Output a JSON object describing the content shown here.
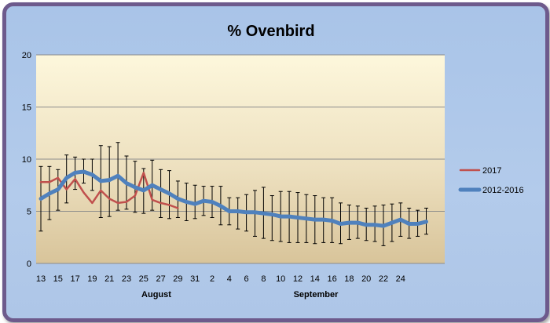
{
  "chart_data": {
    "type": "line",
    "title": "% Ovenbird",
    "xlabel": "",
    "ylabel": "",
    "ylim": [
      0,
      20
    ],
    "yticks": [
      "0",
      "5",
      "10",
      "15",
      "20"
    ],
    "grid": true,
    "legend_position": "right",
    "x_tick_labels": [
      "13",
      "15",
      "17",
      "19",
      "21",
      "23",
      "25",
      "27",
      "29",
      "31",
      "2",
      "4",
      "6",
      "8",
      "10",
      "12",
      "14",
      "16",
      "18",
      "20",
      "22",
      "24"
    ],
    "month_labels": [
      "August",
      "September"
    ],
    "series": [
      {
        "name": "2017",
        "color": "#c0504d",
        "values": [
          7.8,
          7.8,
          8.2,
          7.1,
          8.1,
          6.8,
          5.8,
          7.0,
          6.2,
          5.8,
          5.9,
          6.5,
          8.7,
          6.1,
          5.8,
          5.6,
          5.3
        ]
      },
      {
        "name": "2012-2016",
        "color": "#4f81bd",
        "values": [
          6.2,
          6.7,
          7.1,
          8.2,
          8.7,
          8.8,
          8.5,
          7.9,
          8.0,
          8.4,
          7.7,
          7.3,
          7.0,
          7.5,
          7.1,
          6.7,
          6.2,
          5.9,
          5.7,
          6.0,
          5.9,
          5.5,
          5.0,
          5.0,
          4.9,
          4.9,
          4.8,
          4.7,
          4.5,
          4.5,
          4.4,
          4.3,
          4.2,
          4.2,
          4.1,
          3.8,
          3.9,
          3.9,
          3.7,
          3.7,
          3.6,
          3.9,
          4.2,
          3.8,
          3.8,
          4.0
        ],
        "error_low": [
          3.1,
          4.2,
          5.1,
          5.8,
          7.1,
          7.7,
          7.0,
          4.4,
          4.5,
          5.1,
          5.2,
          4.9,
          4.8,
          5.1,
          4.4,
          4.3,
          4.4,
          4.1,
          4.3,
          4.6,
          4.4,
          3.7,
          3.7,
          3.3,
          3.1,
          2.6,
          2.4,
          2.2,
          2.1,
          2.0,
          2.0,
          2.0,
          1.9,
          2.0,
          2.0,
          1.9,
          2.3,
          2.4,
          2.2,
          2.1,
          1.7,
          2.1,
          2.6,
          2.4,
          2.6,
          2.8
        ],
        "error_high": [
          9.3,
          9.3,
          9.0,
          10.4,
          10.2,
          10.0,
          10.0,
          11.3,
          11.2,
          11.6,
          10.3,
          9.8,
          9.1,
          9.9,
          9.0,
          8.9,
          7.9,
          7.7,
          7.5,
          7.4,
          7.4,
          7.4,
          6.3,
          6.3,
          6.6,
          7.0,
          7.3,
          6.5,
          6.9,
          6.9,
          6.8,
          6.6,
          6.5,
          6.3,
          6.3,
          5.8,
          5.6,
          5.5,
          5.3,
          5.5,
          5.6,
          5.7,
          5.8,
          5.3,
          5.1,
          5.3
        ]
      }
    ]
  }
}
